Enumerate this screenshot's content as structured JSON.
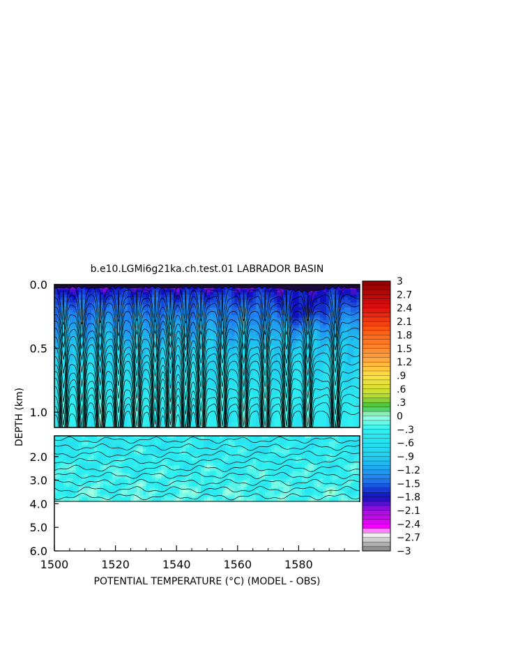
{
  "chart_data": {
    "type": "heatmap",
    "title": "b.e10.LGMi6g21ka.ch.test.01 LABRADOR BASIN",
    "xlabel": "POTENTIAL TEMPERATURE (°C) (MODEL - OBS)",
    "ylabel": "DEPTH (km)",
    "xlim": [
      1500,
      1600
    ],
    "x_ticks": [
      {
        "value": 1500,
        "label": "1500"
      },
      {
        "value": 1520,
        "label": "1520"
      },
      {
        "value": 1540,
        "label": "1540"
      },
      {
        "value": 1560,
        "label": "1560"
      },
      {
        "value": 1580,
        "label": "1580"
      }
    ],
    "upper_panel": {
      "ylim": [
        0.0,
        1.12
      ],
      "y_ticks": [
        {
          "value": 0.0,
          "label": "0.0"
        },
        {
          "value": 0.5,
          "label": "0.5"
        },
        {
          "value": 1.0,
          "label": "1.0"
        }
      ]
    },
    "lower_panel": {
      "ylim": [
        1.12,
        6.0
      ],
      "data_bottom": 3.9,
      "y_ticks": [
        {
          "value": 2.0,
          "label": "2.0"
        },
        {
          "value": 3.0,
          "label": "3.0"
        },
        {
          "value": 4.0,
          "label": "4.0"
        },
        {
          "value": 5.0,
          "label": "5.0"
        },
        {
          "value": 6.0,
          "label": "6.0"
        }
      ]
    },
    "colorbar": {
      "range": [
        -3,
        3
      ],
      "labels": [
        "3",
        "2.7",
        "2.4",
        "2.1",
        "1.8",
        "1.5",
        "1.2",
        ".9",
        ".6",
        ".3",
        "0",
        "-.3",
        "-.6",
        "-.9",
        "-1.2",
        "-1.5",
        "-1.8",
        "-2.1",
        "-2.4",
        "-2.7",
        "-3"
      ],
      "colors": [
        {
          "value": 3.0,
          "color": "#8b0000"
        },
        {
          "value": 2.4,
          "color": "#e01010"
        },
        {
          "value": 1.9,
          "color": "#ff5a10"
        },
        {
          "value": 1.3,
          "color": "#ffa040"
        },
        {
          "value": 0.9,
          "color": "#ffe040"
        },
        {
          "value": 0.5,
          "color": "#c8e030"
        },
        {
          "value": 0.2,
          "color": "#40c040"
        },
        {
          "value": 0.0,
          "color": "#a0ffe0"
        },
        {
          "value": -0.3,
          "color": "#30f0f0"
        },
        {
          "value": -0.9,
          "color": "#20d0f0"
        },
        {
          "value": -1.4,
          "color": "#2080f0"
        },
        {
          "value": -1.8,
          "color": "#1010c0"
        },
        {
          "value": -2.1,
          "color": "#a010e0"
        },
        {
          "value": -2.5,
          "color": "#ff00ff"
        },
        {
          "value": -2.6,
          "color": "#ffffff"
        },
        {
          "value": -3.0,
          "color": "#808080"
        }
      ]
    },
    "field": {
      "surface_value": -2.0,
      "deep_value": -0.45,
      "bottom_value": -0.2,
      "warm_pocket_center_x": 1582,
      "columns": [
        1503,
        1509,
        1515,
        1521,
        1527,
        1533,
        1538,
        1543,
        1548,
        1555,
        1562,
        1569,
        1576,
        1583,
        1592
      ]
    }
  }
}
